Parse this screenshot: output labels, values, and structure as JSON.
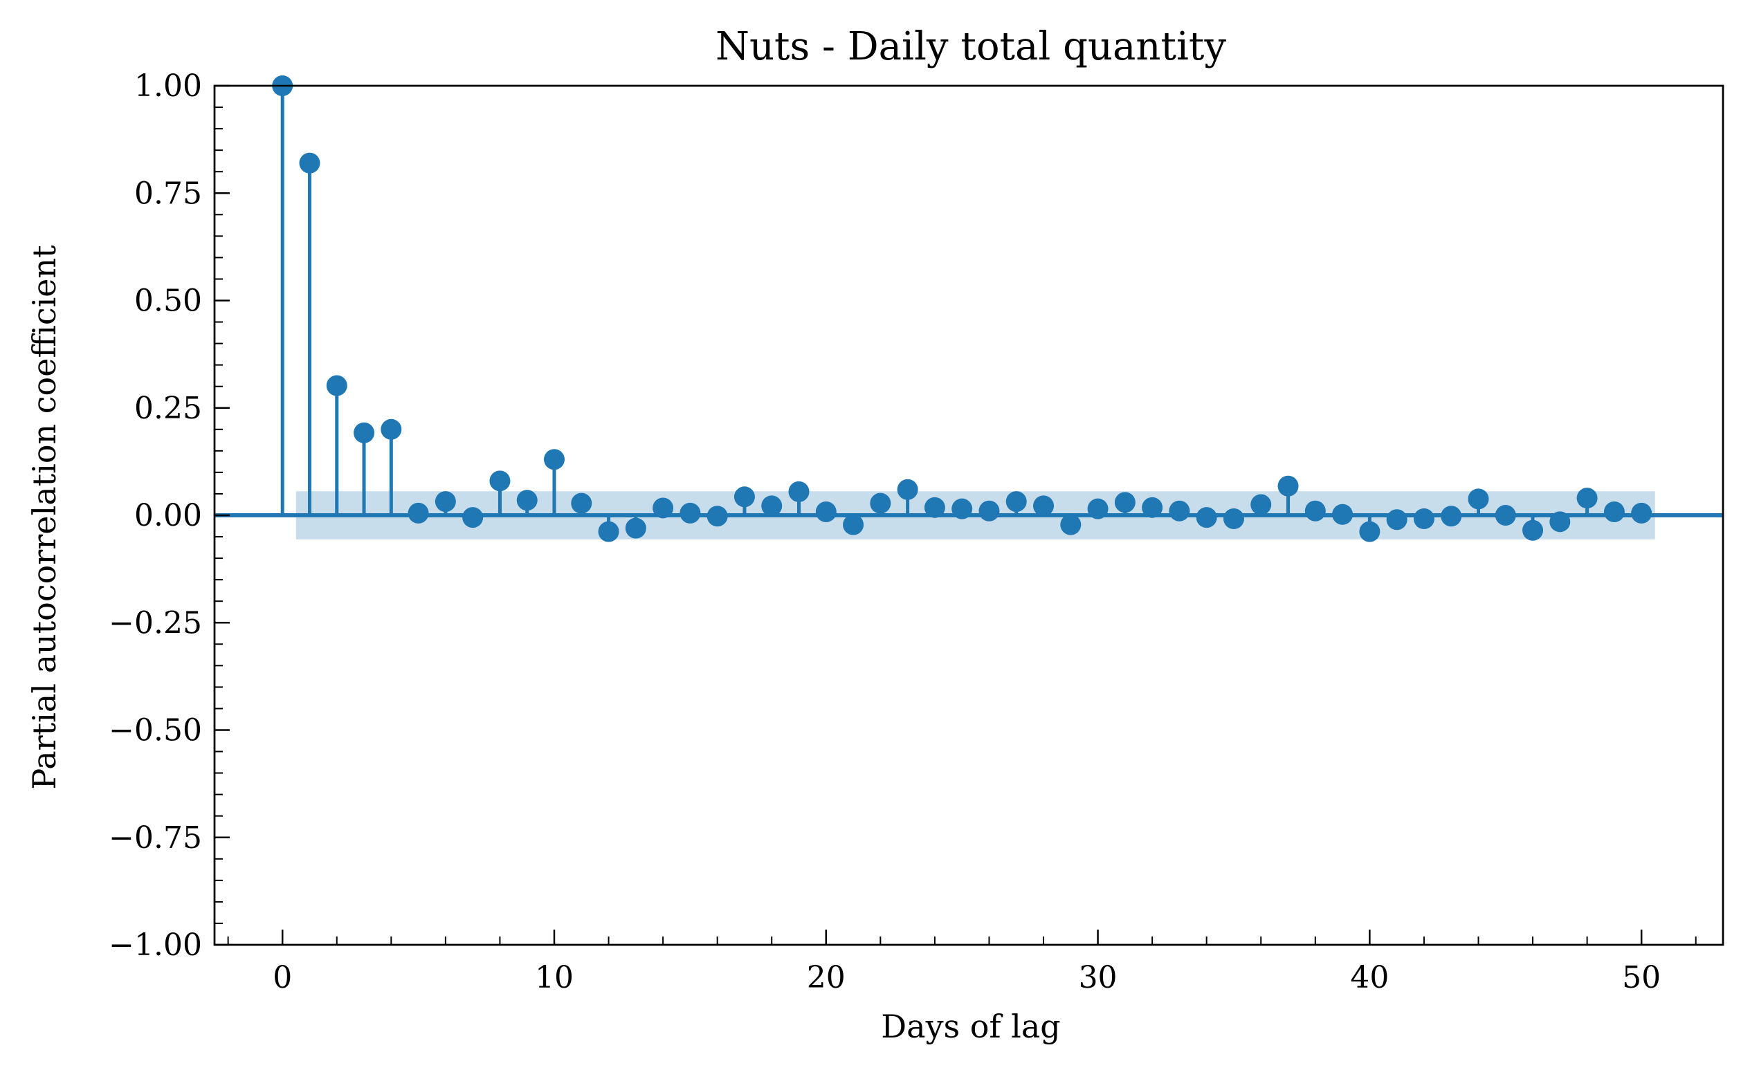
{
  "chart_data": {
    "type": "stem",
    "title": "Nuts - Daily total quantity",
    "xlabel": "Days of lag",
    "ylabel": "Partial autocorrelation coefficient",
    "xlim": [
      -2.5,
      53
    ],
    "ylim": [
      -1.0,
      1.0
    ],
    "xticks": [
      0,
      10,
      20,
      30,
      40,
      50
    ],
    "xtick_labels": [
      "0",
      "10",
      "20",
      "30",
      "40",
      "50"
    ],
    "yticks": [
      1.0,
      0.75,
      0.5,
      0.25,
      0.0,
      -0.25,
      -0.5,
      -0.75,
      -1.0
    ],
    "ytick_labels": [
      "1.00",
      "0.75",
      "0.50",
      "0.25",
      "0.00",
      "−0.25",
      "−0.50",
      "−0.75",
      "−1.00"
    ],
    "grid": false,
    "confidence_band": {
      "x_range": [
        0.5,
        50.5
      ],
      "y_range": [
        -0.056,
        0.056
      ]
    },
    "lags": [
      0,
      1,
      2,
      3,
      4,
      5,
      6,
      7,
      8,
      9,
      10,
      11,
      12,
      13,
      14,
      15,
      16,
      17,
      18,
      19,
      20,
      21,
      22,
      23,
      24,
      25,
      26,
      27,
      28,
      29,
      30,
      31,
      32,
      33,
      34,
      35,
      36,
      37,
      38,
      39,
      40,
      41,
      42,
      43,
      44,
      45,
      46,
      47,
      48,
      49,
      50
    ],
    "values": [
      1.0,
      0.82,
      0.302,
      0.192,
      0.2,
      0.005,
      0.032,
      -0.005,
      0.08,
      0.035,
      0.13,
      0.028,
      -0.038,
      -0.03,
      0.017,
      0.005,
      -0.002,
      0.043,
      0.022,
      0.055,
      0.008,
      -0.022,
      0.028,
      0.06,
      0.018,
      0.015,
      0.01,
      0.032,
      0.022,
      -0.022,
      0.015,
      0.03,
      0.018,
      0.01,
      -0.005,
      -0.008,
      0.025,
      0.068,
      0.01,
      0.002,
      -0.038,
      -0.01,
      -0.008,
      -0.002,
      0.038,
      0.0,
      -0.035,
      -0.015,
      0.04,
      0.008,
      0.005
    ],
    "colors": {
      "stem": "#1f77b4",
      "band": "#1f77b4",
      "band_opacity": 0.25
    }
  }
}
